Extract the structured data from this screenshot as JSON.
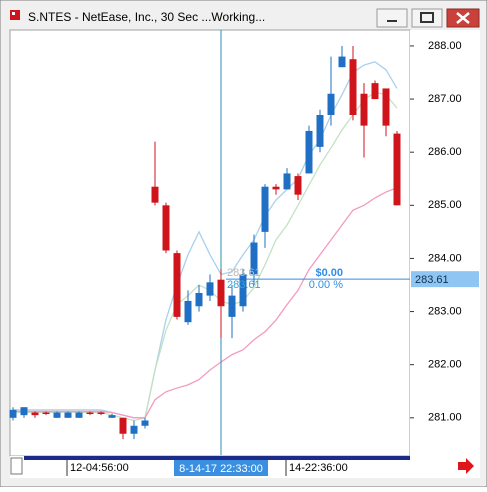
{
  "window": {
    "title": "S.NTES - NetEase, Inc., 30 Sec ...Working..."
  },
  "chart_data": {
    "type": "candlestick",
    "categories": [
      null,
      null,
      null,
      null,
      null,
      "12-04:56:00",
      null,
      null,
      null,
      null,
      null,
      null,
      null,
      null,
      null,
      null,
      null,
      null,
      null,
      "8-14-17 22:33:00",
      null,
      null,
      null,
      null,
      null,
      "14-22:36:00",
      null,
      null,
      null,
      null,
      null,
      null,
      null,
      null,
      null,
      null
    ],
    "open": [
      281.0,
      281.05,
      281.1,
      281.1,
      281.0,
      281.0,
      281.0,
      281.1,
      281.1,
      281.0,
      281.0,
      280.7,
      280.85,
      285.35,
      285.0,
      284.1,
      282.8,
      283.1,
      283.3,
      283.6,
      282.9,
      283.1,
      283.7,
      284.5,
      285.35,
      285.3,
      285.55,
      285.6,
      286.1,
      286.7,
      287.6,
      287.75,
      287.1,
      287.3,
      287.2,
      286.35
    ],
    "high": [
      281.2,
      281.2,
      281.12,
      281.12,
      281.12,
      281.12,
      281.12,
      281.12,
      281.12,
      281.08,
      281.0,
      280.95,
      281.0,
      286.2,
      285.05,
      284.15,
      283.4,
      283.5,
      283.7,
      283.8,
      283.5,
      283.8,
      284.45,
      285.4,
      285.4,
      285.7,
      285.6,
      286.5,
      286.8,
      287.8,
      288.0,
      288.0,
      287.3,
      287.35,
      287.2,
      286.4
    ],
    "low": [
      280.95,
      281.0,
      281.0,
      281.05,
      281.0,
      281.0,
      281.0,
      281.05,
      281.05,
      281.0,
      280.6,
      280.6,
      280.8,
      285.0,
      284.1,
      282.85,
      282.75,
      283.0,
      283.2,
      282.5,
      282.5,
      283.0,
      283.5,
      284.2,
      285.2,
      285.3,
      285.1,
      285.6,
      286.0,
      286.5,
      287.6,
      286.6,
      285.9,
      287.0,
      286.3,
      285.0
    ],
    "close": [
      281.15,
      281.2,
      281.05,
      281.08,
      281.1,
      281.1,
      281.1,
      281.08,
      281.08,
      281.05,
      280.7,
      280.85,
      280.95,
      285.05,
      284.15,
      282.9,
      283.2,
      283.35,
      283.55,
      283.1,
      283.3,
      283.7,
      284.3,
      285.35,
      285.3,
      285.6,
      285.2,
      286.4,
      286.7,
      287.1,
      287.8,
      286.7,
      286.5,
      287.0,
      286.5,
      285.0
    ],
    "up_color": "#1f6fc5",
    "down_color": "#d0141b",
    "series": [
      {
        "color": "#a9d0ec",
        "values": [
          281.15,
          281.15,
          281.15,
          281.15,
          281.15,
          281.15,
          281.15,
          281.15,
          281.15,
          281.1,
          281.05,
          281.0,
          281.0,
          281.9,
          282.85,
          283.5,
          284.07,
          284.5,
          284.07,
          283.7,
          283.75,
          284.07,
          284.35,
          284.8,
          285.1,
          285.3,
          285.5,
          285.95,
          286.23,
          286.7,
          287.08,
          287.5,
          287.64,
          287.7,
          287.55,
          287.2
        ]
      },
      {
        "color": "#c3e2c3",
        "values": [
          281.1,
          281.1,
          281.1,
          281.1,
          281.1,
          281.1,
          281.1,
          281.1,
          281.1,
          281.05,
          281.0,
          280.95,
          281.0,
          281.9,
          282.65,
          283.13,
          283.3,
          283.5,
          283.4,
          283.2,
          283.13,
          283.2,
          283.45,
          283.88,
          284.35,
          284.63,
          285.0,
          285.38,
          285.76,
          286.08,
          286.42,
          286.7,
          286.98,
          287.13,
          287.08,
          286.83
        ]
      },
      {
        "color": "#f49ac0",
        "values": [
          281.12,
          281.12,
          281.12,
          281.12,
          281.12,
          281.12,
          281.12,
          281.12,
          281.12,
          281.1,
          281.05,
          281.0,
          281.0,
          281.34,
          281.49,
          281.56,
          281.62,
          281.72,
          281.9,
          282.05,
          282.19,
          282.28,
          282.47,
          282.62,
          282.84,
          283.13,
          283.4,
          283.79,
          284.07,
          284.35,
          284.63,
          284.91,
          285.0,
          285.14,
          285.25,
          285.33
        ]
      }
    ],
    "ylim": [
      280.3,
      288.3
    ],
    "yticks": [
      {
        "value": 281,
        "label": "281.00"
      },
      {
        "value": 282,
        "label": "282.00"
      },
      {
        "value": 283,
        "label": "283.00"
      },
      {
        "value": 284,
        "label": "284.00"
      },
      {
        "value": 285,
        "label": "285.00"
      },
      {
        "value": 286,
        "label": "286.00"
      },
      {
        "value": 287,
        "label": "287.00"
      },
      {
        "value": 288,
        "label": "288.00"
      }
    ],
    "crosshair": {
      "category": "8-14-17 22:33:00",
      "price": 283.61,
      "color": "#2a8fb3"
    },
    "measure": {
      "labels": [
        "283.61",
        "283.61"
      ],
      "change": "$0.00",
      "change_pct": "0.00 %"
    }
  }
}
